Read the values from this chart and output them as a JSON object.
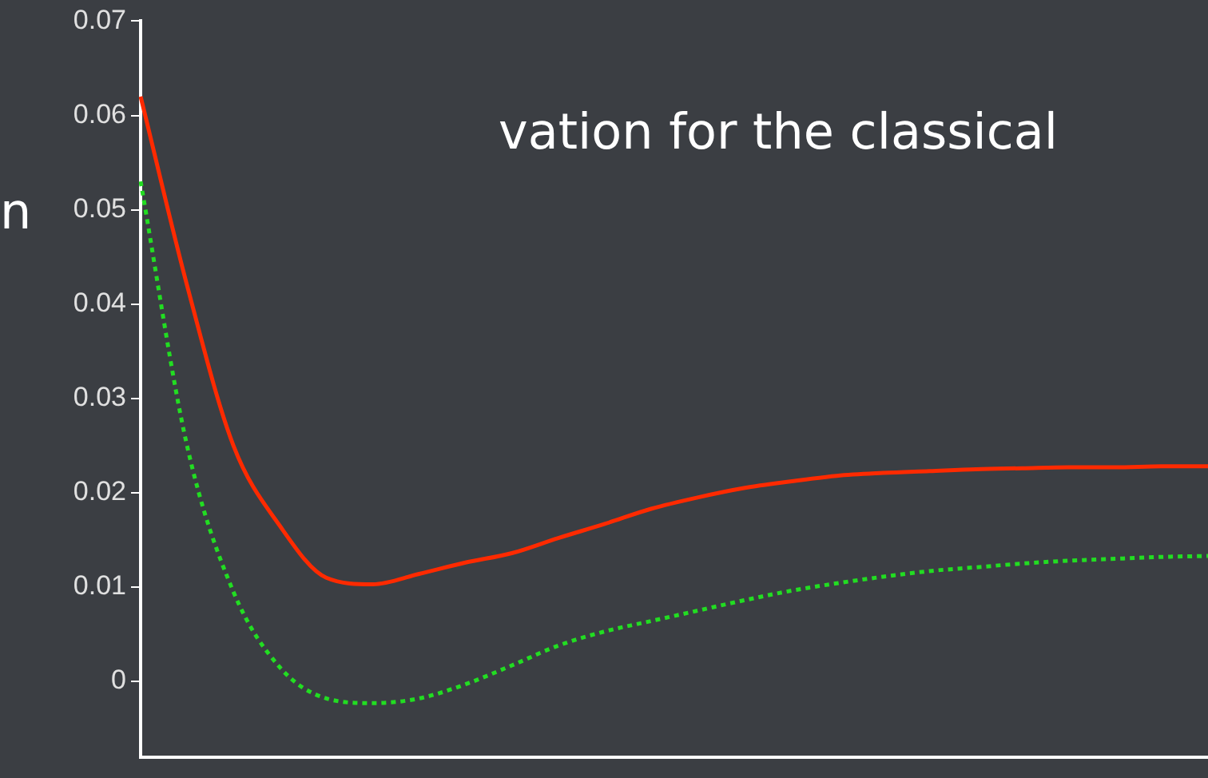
{
  "chart_data": {
    "type": "line",
    "annotations": [
      "vation for the classical",
      "n"
    ],
    "categories": [
      null,
      null,
      null,
      null,
      null,
      null,
      null,
      null,
      null,
      null,
      null,
      null,
      null,
      null,
      null,
      null,
      null,
      null,
      null,
      null,
      null,
      null,
      null,
      null
    ],
    "series": [
      {
        "color": "#ff2a00",
        "line_style": "solid",
        "values": [
          0.062,
          0.042,
          0.025,
          0.0165,
          0.011,
          0.0103,
          0.0114,
          0.0126,
          0.0136,
          0.0152,
          0.0167,
          0.0183,
          0.0195,
          0.0205,
          0.0212,
          0.0218,
          0.0221,
          0.0223,
          0.0225,
          0.0226,
          0.0227,
          0.0227,
          0.0228,
          0.0228
        ]
      },
      {
        "color": "#22dd22",
        "line_style": "dotted",
        "values": [
          0.053,
          0.025,
          0.0095,
          0.0015,
          -0.0018,
          -0.0023,
          -0.0018,
          -0.0003,
          0.0017,
          0.0038,
          0.0053,
          0.0064,
          0.0075,
          0.0086,
          0.0096,
          0.0104,
          0.0111,
          0.0117,
          0.0121,
          0.0125,
          0.0128,
          0.013,
          0.0132,
          0.0133
        ]
      }
    ],
    "ylim": [
      -0.008,
      0.07
    ],
    "yticks": [
      0,
      0.01,
      0.02,
      0.03,
      0.04,
      0.05,
      0.06,
      0.07
    ],
    "tick_labels": "y",
    "grid": false,
    "legend": false,
    "marker": "none"
  }
}
